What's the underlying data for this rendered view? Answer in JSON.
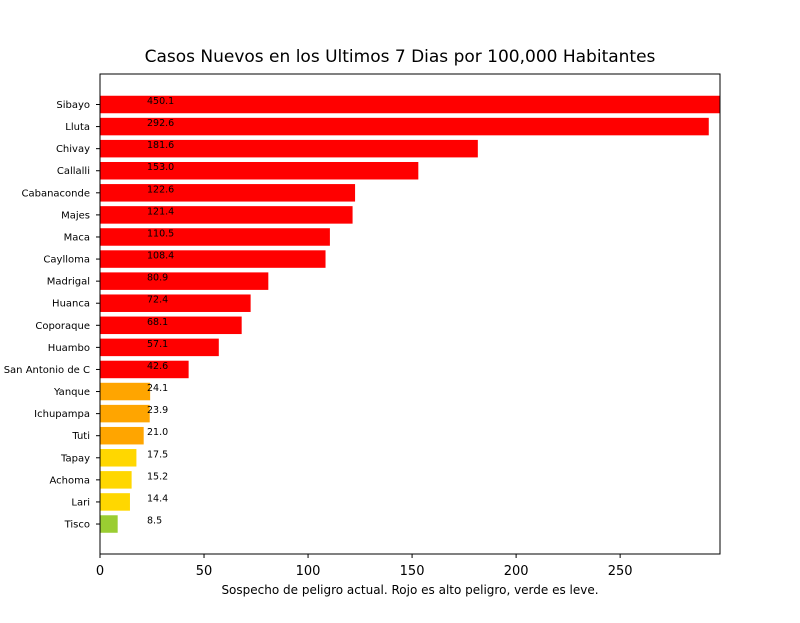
{
  "chart_data": {
    "type": "bar",
    "orientation": "horizontal",
    "title": "Casos Nuevos en los Ultimos 7 Dias por 100,000 Habitantes",
    "xlabel": "Sospecho de peligro actual. Rojo es alto peligro, verde es leve.",
    "ylabel": "",
    "xlim": [
      0,
      298
    ],
    "xticks": [
      0,
      50,
      100,
      150,
      200,
      250
    ],
    "grid": false,
    "categories": [
      "Sibayo",
      "Lluta",
      "Chivay",
      "Callalli",
      "Cabanaconde",
      "Majes",
      "Maca",
      "Caylloma",
      "Madrigal",
      "Huanca",
      "Coporaque",
      "Huambo",
      "San Antonio de C",
      "Yanque",
      "Ichupampa",
      "Tuti",
      "Tapay",
      "Achoma",
      "Lari",
      "Tisco"
    ],
    "values": [
      450.1,
      292.6,
      181.6,
      153.0,
      122.6,
      121.4,
      110.5,
      108.4,
      80.9,
      72.4,
      68.1,
      57.1,
      42.6,
      24.1,
      23.9,
      21.0,
      17.5,
      15.2,
      14.4,
      8.5
    ],
    "value_labels": [
      "450.1",
      "292.6",
      "181.6",
      "153.0",
      "122.6",
      "121.4",
      "110.5",
      "108.4",
      "80.9",
      "72.4",
      "68.1",
      "57.1",
      "42.6",
      "24.1",
      "23.9",
      "21.0",
      "17.5",
      "15.2",
      "14.4",
      "8.5"
    ],
    "bar_colors": [
      "#ff0000",
      "#ff0000",
      "#ff0000",
      "#ff0000",
      "#ff0000",
      "#ff0000",
      "#ff0000",
      "#ff0000",
      "#ff0000",
      "#ff0000",
      "#ff0000",
      "#ff0000",
      "#ff0000",
      "#ffa500",
      "#ffa500",
      "#ffa500",
      "#ffd700",
      "#ffd700",
      "#ffd700",
      "#9acd32"
    ]
  }
}
